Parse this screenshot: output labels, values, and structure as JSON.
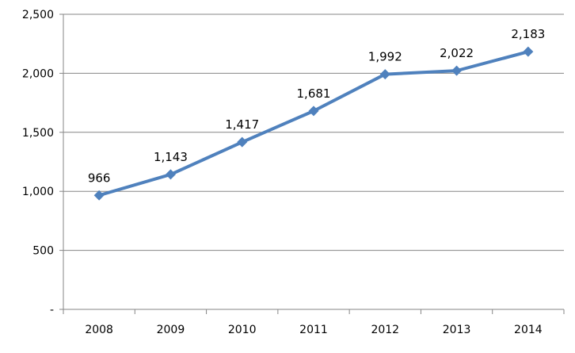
{
  "chart_data": {
    "type": "line",
    "categories": [
      "2008",
      "2009",
      "2010",
      "2011",
      "2012",
      "2013",
      "2014"
    ],
    "series": [
      {
        "values": [
          966,
          1143,
          1417,
          1681,
          1992,
          2022,
          2183
        ],
        "data_labels": [
          "966",
          "1,143",
          "1,417",
          "1,681",
          "1,992",
          "2,022",
          "2,183"
        ],
        "color": "#4f81bd"
      }
    ],
    "y_ticks": [
      {
        "value": 0,
        "label": "-"
      },
      {
        "value": 500,
        "label": "500"
      },
      {
        "value": 1000,
        "label": "1,000"
      },
      {
        "value": 1500,
        "label": "1,500"
      },
      {
        "value": 2000,
        "label": "2,000"
      },
      {
        "value": 2500,
        "label": "2,500"
      }
    ],
    "ylim": [
      0,
      2500
    ],
    "grid": true,
    "marker": "diamond",
    "legend": "none",
    "colors": {
      "line": "#4f81bd",
      "grid": "#868686",
      "axis": "#868686",
      "text": "#000000"
    }
  }
}
